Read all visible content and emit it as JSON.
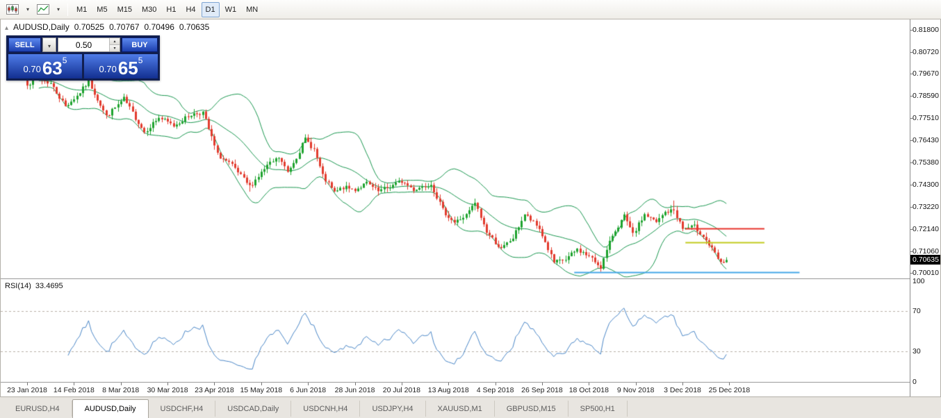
{
  "icons": {
    "caret_down": "▾",
    "spin_up": "▴",
    "spin_down": "▾",
    "title_marker": "▴",
    "toolbar_icons": [
      "candlestick-chart-icon",
      "zigzag-line-icon"
    ]
  },
  "toolbar": {
    "timeframes": [
      {
        "label": "M1",
        "active": false
      },
      {
        "label": "M5",
        "active": false
      },
      {
        "label": "M15",
        "active": false
      },
      {
        "label": "M30",
        "active": false
      },
      {
        "label": "H1",
        "active": false
      },
      {
        "label": "H4",
        "active": false
      },
      {
        "label": "D1",
        "active": true
      },
      {
        "label": "W1",
        "active": false
      },
      {
        "label": "MN",
        "active": false
      }
    ]
  },
  "chart": {
    "title": {
      "symbol_period": "AUDUSD,Daily",
      "open": "0.70525",
      "high": "0.70767",
      "low": "0.70496",
      "close": "0.70635"
    },
    "trade_panel": {
      "sell_label": "SELL",
      "buy_label": "BUY",
      "volume": "0.50",
      "sell_price": {
        "prefix": "0.70",
        "big": "63",
        "sup": "5"
      },
      "buy_price": {
        "prefix": "0.70",
        "big": "65",
        "sup": "5"
      }
    },
    "price_scale": {
      "current": {
        "text": "0.70635",
        "value": 0.70635
      }
    }
  },
  "chart_data": {
    "type": "candlestick",
    "symbol": "AUDUSD",
    "period": "Daily",
    "candle_count": 240,
    "last_ohlc": {
      "open": 0.70525,
      "high": 0.70767,
      "low": 0.70496,
      "close": 0.70635
    },
    "y_ticks": [
      {
        "text": "0.81800",
        "value": 0.818
      },
      {
        "text": "0.80720",
        "value": 0.8072
      },
      {
        "text": "0.79670",
        "value": 0.7967
      },
      {
        "text": "0.78590",
        "value": 0.7859
      },
      {
        "text": "0.77510",
        "value": 0.7751
      },
      {
        "text": "0.76430",
        "value": 0.7643
      },
      {
        "text": "0.75380",
        "value": 0.7538
      },
      {
        "text": "0.74300",
        "value": 0.743
      },
      {
        "text": "0.73220",
        "value": 0.7322
      },
      {
        "text": "0.72140",
        "value": 0.7214
      },
      {
        "text": "0.71060",
        "value": 0.7106
      },
      {
        "text": "0.70010",
        "value": 0.7001
      }
    ],
    "x_tick_labels": [
      "23 Jan 2018",
      "14 Feb 2018",
      "8 Mar 2018",
      "30 Mar 2018",
      "23 Apr 2018",
      "15 May 2018",
      "6 Jun 2018",
      "28 Jun 2018",
      "20 Jul 2018",
      "13 Aug 2018",
      "4 Sep 2018",
      "26 Sep 2018",
      "18 Oct 2018",
      "9 Nov 2018",
      "3 Dec 2018",
      "25 Dec 2018"
    ],
    "approx_close_path": [
      [
        0,
        0.791
      ],
      [
        3,
        0.795
      ],
      [
        8,
        0.792
      ],
      [
        13,
        0.781
      ],
      [
        17,
        0.786
      ],
      [
        21,
        0.793
      ],
      [
        27,
        0.776
      ],
      [
        33,
        0.7845
      ],
      [
        40,
        0.7685
      ],
      [
        45,
        0.7755
      ],
      [
        50,
        0.7715
      ],
      [
        56,
        0.777
      ],
      [
        60,
        0.778
      ],
      [
        65,
        0.7575
      ],
      [
        70,
        0.752
      ],
      [
        76,
        0.742
      ],
      [
        82,
        0.752
      ],
      [
        86,
        0.756
      ],
      [
        89,
        0.749
      ],
      [
        92,
        0.7565
      ],
      [
        95,
        0.765
      ],
      [
        98,
        0.76
      ],
      [
        101,
        0.747
      ],
      [
        105,
        0.739
      ],
      [
        108,
        0.7415
      ],
      [
        112,
        0.7405
      ],
      [
        116,
        0.7435
      ],
      [
        120,
        0.7395
      ],
      [
        124,
        0.742
      ],
      [
        128,
        0.7445
      ],
      [
        132,
        0.7405
      ],
      [
        138,
        0.7435
      ],
      [
        142,
        0.7305
      ],
      [
        146,
        0.7245
      ],
      [
        150,
        0.728
      ],
      [
        153,
        0.734
      ],
      [
        157,
        0.72
      ],
      [
        162,
        0.7115
      ],
      [
        166,
        0.717
      ],
      [
        170,
        0.7285
      ],
      [
        175,
        0.7215
      ],
      [
        180,
        0.705
      ],
      [
        184,
        0.7065
      ],
      [
        188,
        0.7115
      ],
      [
        192,
        0.708
      ],
      [
        196,
        0.703
      ],
      [
        200,
        0.7185
      ],
      [
        204,
        0.7275
      ],
      [
        207,
        0.7185
      ],
      [
        211,
        0.7285
      ],
      [
        215,
        0.7245
      ],
      [
        218,
        0.7295
      ],
      [
        221,
        0.7305
      ],
      [
        224,
        0.7215
      ],
      [
        228,
        0.7225
      ],
      [
        231,
        0.718
      ],
      [
        234,
        0.7115
      ],
      [
        237,
        0.7045
      ],
      [
        239,
        0.70635
      ]
    ],
    "wick_extremes": [
      {
        "index": 3,
        "high": 0.7968
      },
      {
        "index": 76,
        "low": 0.7395
      },
      {
        "index": 95,
        "high": 0.7672
      },
      {
        "index": 196,
        "low": 0.7006
      },
      {
        "index": 221,
        "high": 0.7352
      }
    ],
    "indicators": {
      "bollinger_bands": {
        "period": 20,
        "deviations": 2,
        "color": "#1a9850"
      },
      "rsi": {
        "period": 14,
        "label": "RSI(14)",
        "value_text": "33.4695",
        "current_value": 33.4695,
        "color": "#4a87c8",
        "levels": [
          70,
          30
        ],
        "range": [
          0,
          100
        ],
        "scale_labels": [
          {
            "text": "100",
            "value": 100
          },
          {
            "text": "70",
            "value": 70
          },
          {
            "text": "30",
            "value": 30
          },
          {
            "text": "0",
            "value": 0
          }
        ]
      }
    },
    "horizontal_lines": [
      {
        "name": "resistance-line-red",
        "price": 0.7215,
        "color": "#e8322a",
        "from_index": 225,
        "to_index": 252,
        "width": 2
      },
      {
        "name": "support-line-yellow",
        "price": 0.715,
        "color": "#c3cc1e",
        "from_index": 225,
        "to_index": 252,
        "width": 2
      },
      {
        "name": "support-line-blue",
        "price": 0.7003,
        "color": "#45a7e8",
        "from_index": 187,
        "to_index": 264,
        "width": 2
      }
    ],
    "colors": {
      "candle_up": "#1ea32e",
      "candle_down": "#e23b2e",
      "rsi_levels_dash": "#b8b0a6",
      "price_badge_bg": "#000000",
      "price_badge_text": "#ffffff"
    }
  },
  "tabs": [
    {
      "label": "EURUSD,H4",
      "active": false
    },
    {
      "label": "AUDUSD,Daily",
      "active": true
    },
    {
      "label": "USDCHF,H4",
      "active": false
    },
    {
      "label": "USDCAD,Daily",
      "active": false
    },
    {
      "label": "USDCNH,H4",
      "active": false
    },
    {
      "label": "USDJPY,H4",
      "active": false
    },
    {
      "label": "XAUUSD,M1",
      "active": false
    },
    {
      "label": "GBPUSD,M15",
      "active": false
    },
    {
      "label": "SP500,H1",
      "active": false
    }
  ]
}
